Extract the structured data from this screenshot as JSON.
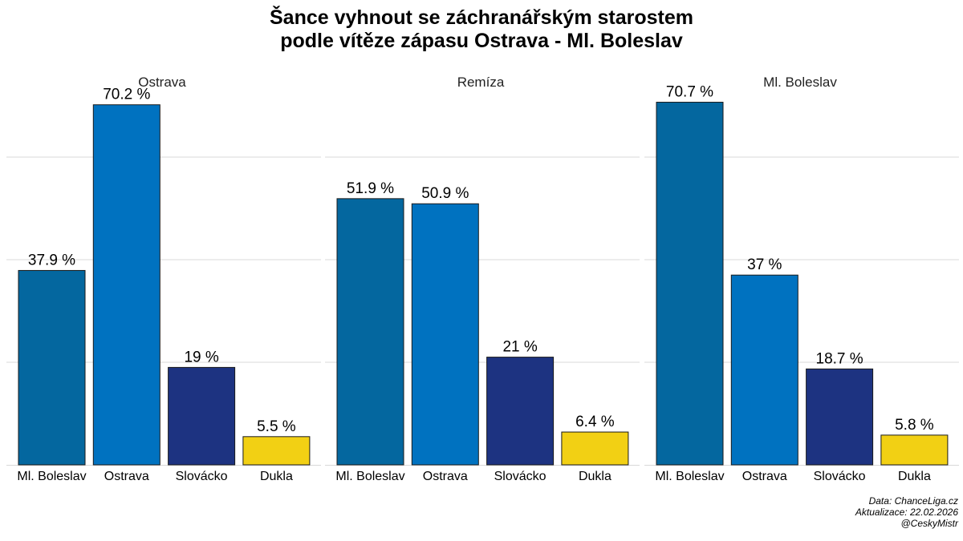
{
  "title": {
    "line1": "Šance vyhnout se záchranářským starostem",
    "line2": "podle vítěze zápasu Ostrava - Ml. Boleslav"
  },
  "chart_data": [
    {
      "type": "bar",
      "panel_title": "Ostrava",
      "categories": [
        "Ml. Boleslav",
        "Ostrava",
        "Slovácko",
        "Dukla"
      ],
      "values": [
        37.9,
        70.2,
        19,
        5.5
      ],
      "value_labels": [
        "37.9 %",
        "70.2 %",
        "19 %",
        "5.5 %"
      ],
      "ylim": [
        0,
        75
      ],
      "grid": "horizontal"
    },
    {
      "type": "bar",
      "panel_title": "Remíza",
      "categories": [
        "Ml. Boleslav",
        "Ostrava",
        "Slovácko",
        "Dukla"
      ],
      "values": [
        51.9,
        50.9,
        21,
        6.4
      ],
      "value_labels": [
        "51.9 %",
        "50.9 %",
        "21 %",
        "6.4 %"
      ],
      "ylim": [
        0,
        75
      ],
      "grid": "horizontal"
    },
    {
      "type": "bar",
      "panel_title": "Ml. Boleslav",
      "categories": [
        "Ml. Boleslav",
        "Ostrava",
        "Slovácko",
        "Dukla"
      ],
      "values": [
        70.7,
        37,
        18.7,
        5.8
      ],
      "value_labels": [
        "70.7 %",
        "37 %",
        "18.7 %",
        "5.8 %"
      ],
      "ylim": [
        0,
        75
      ],
      "grid": "horizontal"
    }
  ],
  "colors": {
    "Ml. Boleslav": "#04679f",
    "Ostrava": "#0072c0",
    "Slovácko": "#1d3381",
    "Dukla": "#f2d014",
    "grid": "#d9d9d9"
  },
  "footer": {
    "source": "Data: ChanceLiga.cz",
    "updated": "Aktualizace:  22.02.2026",
    "handle": "@CeskyMistr"
  }
}
